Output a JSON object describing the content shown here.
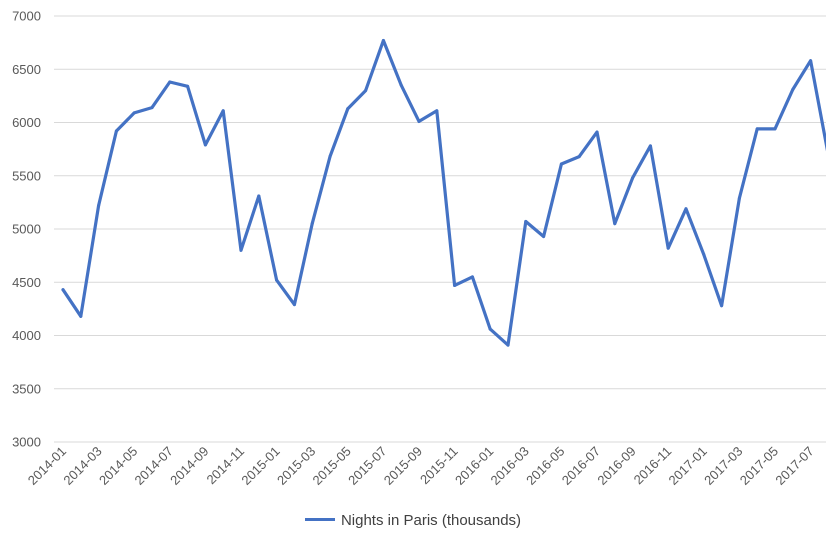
{
  "chart_data": {
    "type": "line",
    "title": "",
    "xlabel": "",
    "ylabel": "",
    "ylim": [
      3000,
      7000
    ],
    "y_ticks": [
      3000,
      3500,
      4000,
      4500,
      5000,
      5500,
      6000,
      6500,
      7000
    ],
    "grid": true,
    "legend_position": "bottom",
    "x": [
      "2014-01",
      "2014-02",
      "2014-03",
      "2014-04",
      "2014-05",
      "2014-06",
      "2014-07",
      "2014-08",
      "2014-09",
      "2014-10",
      "2014-11",
      "2014-12",
      "2015-01",
      "2015-02",
      "2015-03",
      "2015-04",
      "2015-05",
      "2015-06",
      "2015-07",
      "2015-08",
      "2015-09",
      "2015-10",
      "2015-11",
      "2015-12",
      "2016-01",
      "2016-02",
      "2016-03",
      "2016-04",
      "2016-05",
      "2016-06",
      "2016-07",
      "2016-08",
      "2016-09",
      "2016-10",
      "2016-11",
      "2016-12",
      "2017-01",
      "2017-02",
      "2017-03",
      "2017-04",
      "2017-05",
      "2017-06",
      "2017-07",
      "2017-08"
    ],
    "x_tick_labels": [
      "2014-01",
      "2014-03",
      "2014-05",
      "2014-07",
      "2014-09",
      "2014-11",
      "2015-01",
      "2015-03",
      "2015-05",
      "2015-07",
      "2015-09",
      "2015-11",
      "2016-01",
      "2016-03",
      "2016-05",
      "2016-07",
      "2016-09",
      "2016-11",
      "2017-01",
      "2017-03",
      "2017-05",
      "2017-07"
    ],
    "series": [
      {
        "name": "Nights in Paris (thousands)",
        "color": "#4472C4",
        "values": [
          4430,
          4180,
          5220,
          5920,
          6090,
          6140,
          6380,
          6340,
          5790,
          6110,
          4800,
          5310,
          4520,
          4290,
          5050,
          5680,
          6130,
          6300,
          6770,
          6350,
          6010,
          6110,
          4470,
          4550,
          4060,
          3910,
          5070,
          4930,
          5610,
          5680,
          5910,
          5050,
          5480,
          5780,
          4820,
          5190,
          4760,
          4280,
          5290,
          5940,
          5940,
          6310,
          6580,
          5690
        ]
      }
    ]
  }
}
